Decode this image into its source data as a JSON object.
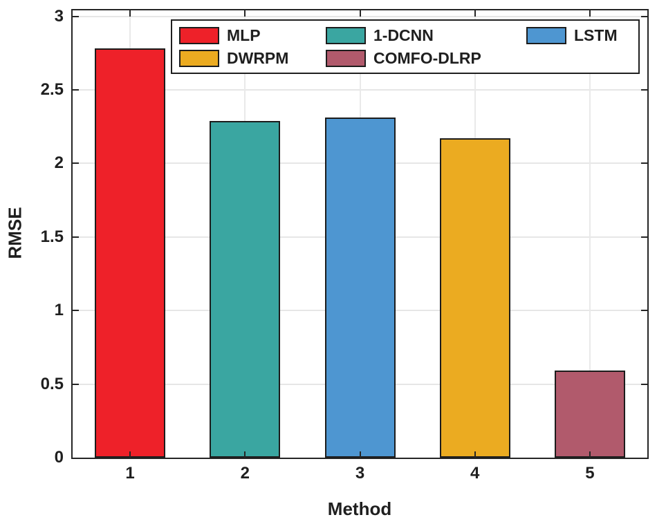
{
  "chart_data": {
    "type": "bar",
    "title": "",
    "xlabel": "Method",
    "ylabel": "RMSE",
    "categories": [
      "1",
      "2",
      "3",
      "4",
      "5"
    ],
    "series": [
      {
        "name": "MLP",
        "value": 2.78,
        "color": "#ee2129"
      },
      {
        "name": "1-DCNN",
        "value": 2.29,
        "color": "#3aa6a1"
      },
      {
        "name": "LSTM",
        "value": 2.31,
        "color": "#4e96d1"
      },
      {
        "name": "DWRPM",
        "value": 2.17,
        "color": "#ebab21"
      },
      {
        "name": "COMFO-DLRP",
        "value": 0.59,
        "color": "#b15a6c"
      }
    ],
    "ylim": [
      0,
      3.04
    ],
    "yticks": [
      {
        "value": 0,
        "label": "0"
      },
      {
        "value": 0.5,
        "label": "0.5"
      },
      {
        "value": 1,
        "label": "1"
      },
      {
        "value": 1.5,
        "label": "1.5"
      },
      {
        "value": 2,
        "label": "2"
      },
      {
        "value": 2.5,
        "label": "2.5"
      },
      {
        "value": 3,
        "label": "3"
      }
    ],
    "grid": true,
    "legend": {
      "columns": 3,
      "position": "top-center"
    }
  },
  "colors": {
    "axis": "#252525",
    "grid": "#e6e6e6",
    "bar_edge": "#1c1c1c",
    "background": "#ffffff",
    "text": "#1f1f1f"
  }
}
